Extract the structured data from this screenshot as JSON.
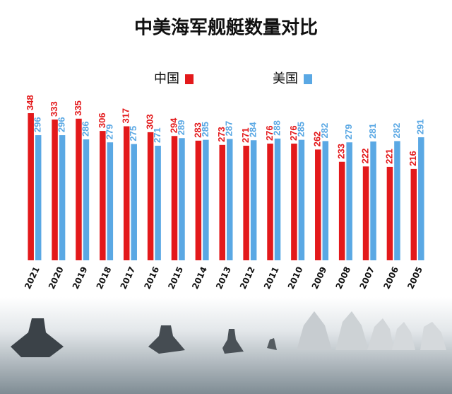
{
  "chart_data": {
    "type": "bar",
    "title": "中美海军舰艇数量对比",
    "categories": [
      "2021",
      "2020",
      "2019",
      "2018",
      "2017",
      "2016",
      "2015",
      "2014",
      "2013",
      "2012",
      "2011",
      "2010",
      "2009",
      "2008",
      "2007",
      "2006",
      "2005"
    ],
    "series": [
      {
        "name": "中国",
        "color": "#e3191b",
        "values": [
          348,
          333,
          335,
          306,
          317,
          303,
          294,
          283,
          273,
          271,
          276,
          276,
          262,
          233,
          222,
          221,
          216
        ]
      },
      {
        "name": "美国",
        "color": "#5aa8e4",
        "values": [
          296,
          296,
          286,
          279,
          275,
          271,
          289,
          285,
          287,
          284,
          288,
          285,
          282,
          279,
          281,
          282,
          291
        ]
      }
    ]
  }
}
